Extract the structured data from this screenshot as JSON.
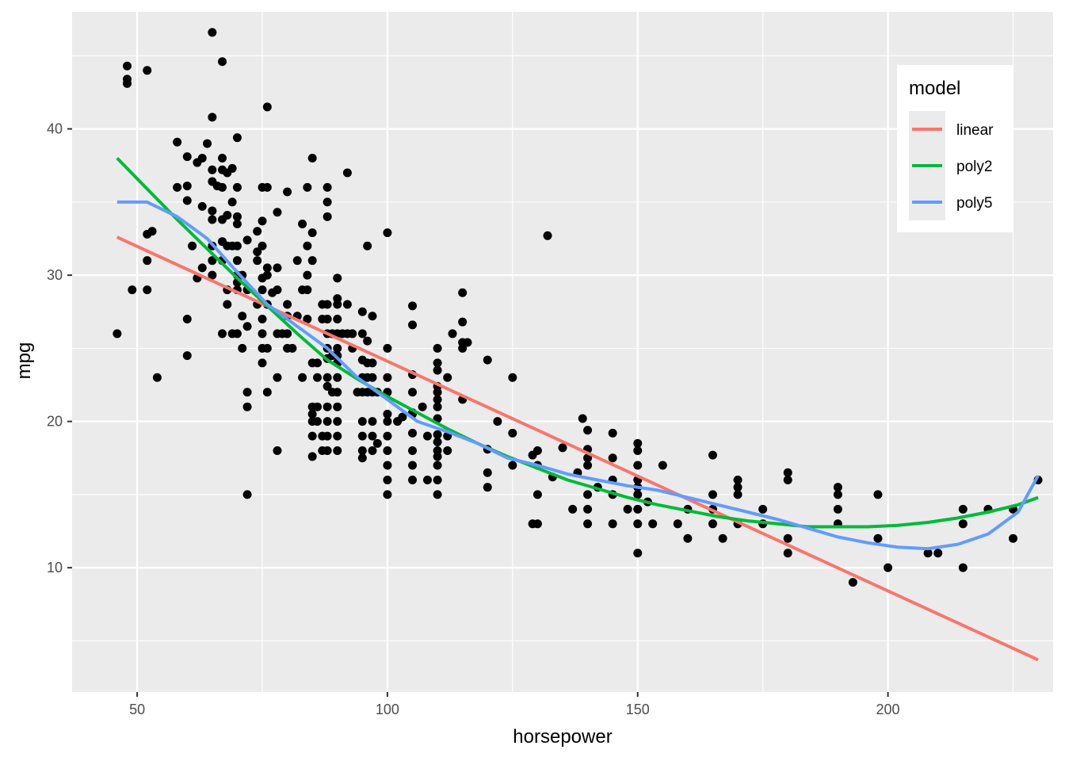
{
  "chart_data": {
    "type": "scatter",
    "xlabel": "horsepower",
    "ylabel": "mpg",
    "xlim": [
      37,
      233
    ],
    "ylim": [
      1.5,
      48.0
    ],
    "x_ticks": [
      50,
      100,
      150,
      200
    ],
    "y_ticks": [
      10,
      20,
      30,
      40
    ],
    "x_tick_labels": [
      "50",
      "100",
      "150",
      "200"
    ],
    "y_tick_labels": [
      "10",
      "20",
      "30",
      "40"
    ],
    "grid": true,
    "legend": {
      "title": "model",
      "placement": "top-right",
      "entries": [
        "linear",
        "poly2",
        "poly5"
      ]
    },
    "colors": {
      "panel": "#EBEBEB",
      "grid": "#FFFFFF",
      "points": "#000000",
      "linear": "#F8766D",
      "poly2": "#00BA38",
      "poly5": "#619CFF"
    },
    "points": [
      [
        46,
        26
      ],
      [
        48,
        44.3
      ],
      [
        48,
        43.4
      ],
      [
        48,
        43.1
      ],
      [
        49,
        29
      ],
      [
        52,
        44
      ],
      [
        52,
        32.8
      ],
      [
        52,
        31
      ],
      [
        52,
        29
      ],
      [
        53,
        33
      ],
      [
        54,
        23
      ],
      [
        58,
        39.1
      ],
      [
        58,
        36
      ],
      [
        60,
        38.1
      ],
      [
        60,
        36.1
      ],
      [
        60,
        35.1
      ],
      [
        60,
        27
      ],
      [
        60,
        24.5
      ],
      [
        61,
        32
      ],
      [
        62,
        29.8
      ],
      [
        62,
        37.7
      ],
      [
        63,
        38
      ],
      [
        63,
        30.5
      ],
      [
        63,
        34.7
      ],
      [
        64,
        39
      ],
      [
        65,
        46.6
      ],
      [
        65,
        40.8
      ],
      [
        65,
        37.2
      ],
      [
        65,
        36.4
      ],
      [
        65,
        34.4
      ],
      [
        65,
        33.8
      ],
      [
        65,
        32
      ],
      [
        65,
        31
      ],
      [
        65,
        30
      ],
      [
        66,
        36.1
      ],
      [
        67,
        44.6
      ],
      [
        67,
        38
      ],
      [
        67,
        37.2
      ],
      [
        67,
        36
      ],
      [
        67,
        33.8
      ],
      [
        67,
        32.3
      ],
      [
        67,
        31
      ],
      [
        67,
        26
      ],
      [
        68,
        37
      ],
      [
        68,
        34.1
      ],
      [
        68,
        32
      ],
      [
        68,
        29
      ],
      [
        68,
        28
      ],
      [
        69,
        37.3
      ],
      [
        69,
        32
      ],
      [
        69,
        35
      ],
      [
        69,
        26
      ],
      [
        70,
        39.4
      ],
      [
        70,
        36
      ],
      [
        70,
        34
      ],
      [
        70,
        33.5
      ],
      [
        70,
        32
      ],
      [
        70,
        31
      ],
      [
        70,
        30
      ],
      [
        70,
        29.5
      ],
      [
        70,
        29
      ],
      [
        70,
        26
      ],
      [
        71,
        27.2
      ],
      [
        71,
        30
      ],
      [
        71,
        25
      ],
      [
        72,
        32.4
      ],
      [
        72,
        29
      ],
      [
        72,
        26.5
      ],
      [
        72,
        22
      ],
      [
        72,
        21
      ],
      [
        72,
        15
      ],
      [
        74,
        33
      ],
      [
        74,
        31.6
      ],
      [
        74,
        28
      ],
      [
        74,
        31
      ],
      [
        75,
        36
      ],
      [
        75,
        33.7
      ],
      [
        75,
        32
      ],
      [
        75,
        29.8
      ],
      [
        75,
        29
      ],
      [
        75,
        27
      ],
      [
        75,
        26
      ],
      [
        75,
        25
      ],
      [
        75,
        24
      ],
      [
        76,
        41.5
      ],
      [
        76,
        36
      ],
      [
        76,
        30.5
      ],
      [
        76,
        30
      ],
      [
        76,
        28
      ],
      [
        76,
        25
      ],
      [
        76,
        22
      ],
      [
        77,
        28.8
      ],
      [
        78,
        34.3
      ],
      [
        78,
        30.5
      ],
      [
        78,
        29
      ],
      [
        78,
        26
      ],
      [
        78,
        23
      ],
      [
        78,
        18
      ],
      [
        79,
        26
      ],
      [
        80,
        35.7
      ],
      [
        80,
        28
      ],
      [
        80,
        27.2
      ],
      [
        80,
        26
      ],
      [
        80,
        25
      ],
      [
        81,
        25
      ],
      [
        82,
        31
      ],
      [
        82,
        27.2
      ],
      [
        83,
        33.5
      ],
      [
        83,
        29
      ],
      [
        83,
        23
      ],
      [
        84,
        36
      ],
      [
        84,
        32
      ],
      [
        84,
        30
      ],
      [
        84,
        29
      ],
      [
        84,
        27
      ],
      [
        85,
        38
      ],
      [
        85,
        32.9
      ],
      [
        85,
        31
      ],
      [
        85,
        24
      ],
      [
        85,
        21
      ],
      [
        85,
        20.5
      ],
      [
        85,
        20
      ],
      [
        85,
        19
      ],
      [
        85,
        17.6
      ],
      [
        86,
        24
      ],
      [
        86,
        23
      ],
      [
        86,
        21
      ],
      [
        86,
        20
      ],
      [
        87,
        27
      ],
      [
        87,
        19
      ],
      [
        87,
        18
      ],
      [
        87,
        28
      ],
      [
        88,
        36
      ],
      [
        88,
        35
      ],
      [
        88,
        34
      ],
      [
        88,
        28
      ],
      [
        88,
        27
      ],
      [
        88,
        26
      ],
      [
        88,
        25
      ],
      [
        88,
        24.3
      ],
      [
        88,
        23
      ],
      [
        88,
        22.4
      ],
      [
        88,
        21
      ],
      [
        88,
        20
      ],
      [
        88,
        19
      ],
      [
        88,
        18
      ],
      [
        89,
        26
      ],
      [
        89,
        24.5
      ],
      [
        89,
        22
      ],
      [
        90,
        29.8
      ],
      [
        90,
        28.4
      ],
      [
        90,
        28
      ],
      [
        90,
        27
      ],
      [
        90,
        26
      ],
      [
        90,
        25
      ],
      [
        90,
        24.5
      ],
      [
        90,
        24
      ],
      [
        90,
        23
      ],
      [
        90,
        22
      ],
      [
        90,
        21
      ],
      [
        90,
        20
      ],
      [
        90,
        19
      ],
      [
        90,
        18
      ],
      [
        91,
        26
      ],
      [
        92,
        37
      ],
      [
        92,
        28
      ],
      [
        92,
        26
      ],
      [
        93,
        25
      ],
      [
        93,
        26
      ],
      [
        94,
        22
      ],
      [
        95,
        27.5
      ],
      [
        95,
        26
      ],
      [
        95,
        24.2
      ],
      [
        95,
        23
      ],
      [
        95,
        22
      ],
      [
        95,
        20
      ],
      [
        95,
        19
      ],
      [
        95,
        18
      ],
      [
        95,
        17.5
      ],
      [
        96,
        32
      ],
      [
        96,
        25.5
      ],
      [
        96,
        24
      ],
      [
        96,
        23
      ],
      [
        96,
        22
      ],
      [
        97,
        27.2
      ],
      [
        97,
        24
      ],
      [
        97,
        23
      ],
      [
        97,
        22
      ],
      [
        97,
        20
      ],
      [
        97,
        19
      ],
      [
        97,
        18
      ],
      [
        98,
        18.5
      ],
      [
        98,
        22
      ],
      [
        100,
        32.9
      ],
      [
        100,
        25
      ],
      [
        100,
        23
      ],
      [
        100,
        22
      ],
      [
        100,
        20.5
      ],
      [
        100,
        20
      ],
      [
        100,
        19
      ],
      [
        100,
        18
      ],
      [
        100,
        17
      ],
      [
        100,
        16
      ],
      [
        100,
        15
      ],
      [
        102,
        20
      ],
      [
        103,
        20.3
      ],
      [
        105,
        27.9
      ],
      [
        105,
        26.6
      ],
      [
        105,
        23.2
      ],
      [
        105,
        22
      ],
      [
        105,
        20.6
      ],
      [
        105,
        20.5
      ],
      [
        105,
        19.2
      ],
      [
        105,
        18
      ],
      [
        105,
        17
      ],
      [
        105,
        16
      ],
      [
        107,
        21
      ],
      [
        108,
        19
      ],
      [
        108,
        16
      ],
      [
        110,
        25
      ],
      [
        110,
        24
      ],
      [
        110,
        23.5
      ],
      [
        110,
        22.4
      ],
      [
        110,
        22
      ],
      [
        110,
        21.5
      ],
      [
        110,
        21
      ],
      [
        110,
        20.2
      ],
      [
        110,
        19.1
      ],
      [
        110,
        18.6
      ],
      [
        110,
        18
      ],
      [
        110,
        17.6
      ],
      [
        110,
        17
      ],
      [
        110,
        16
      ],
      [
        110,
        15
      ],
      [
        112,
        23
      ],
      [
        112,
        19
      ],
      [
        112,
        18
      ],
      [
        113,
        26
      ],
      [
        115,
        28.8
      ],
      [
        115,
        26.8
      ],
      [
        115,
        25.4
      ],
      [
        115,
        25
      ],
      [
        115,
        21.5
      ],
      [
        116,
        25.4
      ],
      [
        120,
        24.2
      ],
      [
        120,
        18.1
      ],
      [
        120,
        16.5
      ],
      [
        120,
        15.5
      ],
      [
        122,
        20
      ],
      [
        125,
        23
      ],
      [
        125,
        19.2
      ],
      [
        125,
        17
      ],
      [
        129,
        17.7
      ],
      [
        129,
        13
      ],
      [
        130,
        18
      ],
      [
        130,
        17
      ],
      [
        130,
        15
      ],
      [
        130,
        13
      ],
      [
        132,
        32.7
      ],
      [
        133,
        16.2
      ],
      [
        135,
        18.2
      ],
      [
        137,
        14
      ],
      [
        138,
        16.5
      ],
      [
        139,
        20.2
      ],
      [
        140,
        19.4
      ],
      [
        140,
        18.1
      ],
      [
        140,
        17.5
      ],
      [
        140,
        17
      ],
      [
        140,
        15
      ],
      [
        140,
        14
      ],
      [
        140,
        13
      ],
      [
        142,
        15.5
      ],
      [
        145,
        19.2
      ],
      [
        145,
        17.5
      ],
      [
        145,
        16
      ],
      [
        145,
        15
      ],
      [
        145,
        13
      ],
      [
        148,
        14
      ],
      [
        150,
        18.5
      ],
      [
        150,
        18
      ],
      [
        150,
        17
      ],
      [
        150,
        16
      ],
      [
        150,
        15.5
      ],
      [
        150,
        15
      ],
      [
        150,
        14
      ],
      [
        150,
        13
      ],
      [
        150,
        11
      ],
      [
        152,
        14.5
      ],
      [
        153,
        13
      ],
      [
        155,
        17
      ],
      [
        158,
        13
      ],
      [
        160,
        14
      ],
      [
        160,
        12
      ],
      [
        165,
        17.7
      ],
      [
        165,
        15
      ],
      [
        165,
        14
      ],
      [
        165,
        13
      ],
      [
        167,
        12
      ],
      [
        170,
        16
      ],
      [
        170,
        15.5
      ],
      [
        170,
        15
      ],
      [
        170,
        13
      ],
      [
        175,
        14
      ],
      [
        175,
        13
      ],
      [
        180,
        16.5
      ],
      [
        180,
        16
      ],
      [
        180,
        12
      ],
      [
        180,
        11
      ],
      [
        190,
        15.5
      ],
      [
        190,
        15
      ],
      [
        190,
        14
      ],
      [
        190,
        13
      ],
      [
        193,
        9
      ],
      [
        198,
        15
      ],
      [
        198,
        12
      ],
      [
        200,
        10
      ],
      [
        208,
        11
      ],
      [
        210,
        11
      ],
      [
        215,
        14
      ],
      [
        215,
        13
      ],
      [
        215,
        10
      ],
      [
        220,
        14
      ],
      [
        225,
        14
      ],
      [
        225,
        12
      ],
      [
        230,
        16
      ]
    ],
    "series": [
      {
        "name": "linear",
        "x": [
          46,
          230
        ],
        "y": [
          32.6,
          3.7
        ]
      },
      {
        "name": "poly2",
        "x": [
          46,
          52,
          58,
          64,
          70,
          76,
          82,
          88,
          94,
          100,
          106,
          112,
          118,
          124,
          130,
          136,
          142,
          148,
          154,
          160,
          166,
          172,
          178,
          184,
          190,
          196,
          202,
          208,
          214,
          220,
          226,
          230
        ],
        "y": [
          38.0,
          35.9,
          33.8,
          31.8,
          29.8,
          27.9,
          26.0,
          24.2,
          22.9,
          21.7,
          20.6,
          19.5,
          18.5,
          17.6,
          16.8,
          16.0,
          15.4,
          14.8,
          14.3,
          13.9,
          13.5,
          13.2,
          13.0,
          12.8,
          12.8,
          12.8,
          12.9,
          13.1,
          13.4,
          13.8,
          14.3,
          14.8
        ]
      },
      {
        "name": "poly5",
        "x": [
          46,
          52,
          58,
          64,
          70,
          76,
          82,
          88,
          94,
          100,
          106,
          112,
          118,
          124,
          130,
          136,
          142,
          148,
          154,
          160,
          166,
          172,
          178,
          184,
          190,
          196,
          202,
          208,
          214,
          220,
          226,
          230
        ],
        "y": [
          35.0,
          35.0,
          34.0,
          32.5,
          30.2,
          28.0,
          26.5,
          25.0,
          23.0,
          21.5,
          20.0,
          19.3,
          18.5,
          17.5,
          17.0,
          16.4,
          16.0,
          15.6,
          15.3,
          14.8,
          14.3,
          13.8,
          13.3,
          12.7,
          12.1,
          11.7,
          11.4,
          11.3,
          11.6,
          12.3,
          13.8,
          16.3
        ]
      }
    ]
  }
}
